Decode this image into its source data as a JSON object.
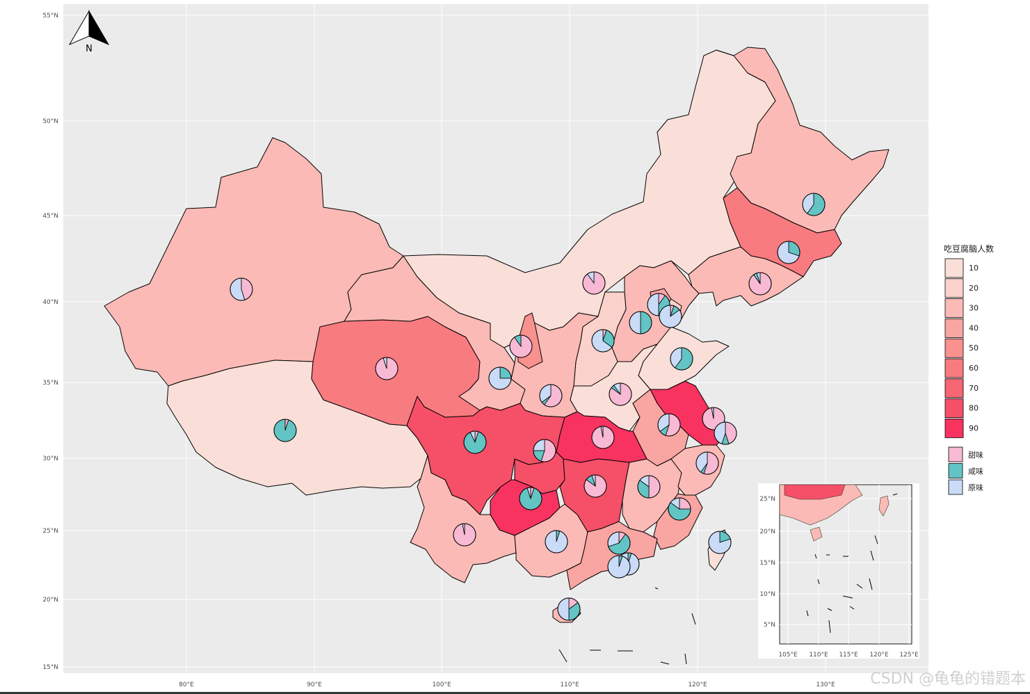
{
  "legend": {
    "title": "吃豆腐脑人数",
    "fill_levels": [
      {
        "label": "10",
        "color": "#f9dfd8"
      },
      {
        "label": "20",
        "color": "#fbd1cb"
      },
      {
        "label": "30",
        "color": "#fbbab5"
      },
      {
        "label": "40",
        "color": "#f9a5a2"
      },
      {
        "label": "50",
        "color": "#f9918f"
      },
      {
        "label": "60",
        "color": "#f87b80"
      },
      {
        "label": "70",
        "color": "#f66673"
      },
      {
        "label": "80",
        "color": "#f64f68"
      },
      {
        "label": "90",
        "color": "#f83360"
      }
    ],
    "flavors": [
      {
        "label": "甜味",
        "color": "#f7b9d3"
      },
      {
        "label": "咸味",
        "color": "#63c4c4"
      },
      {
        "label": "原味",
        "color": "#c9dbf7"
      }
    ]
  },
  "axes": {
    "y_ticks": [
      "55°N",
      "50°N",
      "45°N",
      "40°N",
      "35°N",
      "30°N",
      "25°N",
      "20°N",
      "15°N"
    ],
    "x_ticks": [
      "80°E",
      "90°E",
      "100°E",
      "110°E",
      "120°E",
      "130°E"
    ]
  },
  "inset": {
    "y_ticks": [
      "25°N",
      "20°N",
      "15°N",
      "10°N",
      "5°N"
    ],
    "x_ticks": [
      "105°E",
      "110°E",
      "115°E",
      "120°E",
      "125°E"
    ]
  },
  "north_arrow_label": "N",
  "watermark": "CSDN @龟龟的错题本",
  "colors": {
    "panel_bg": "#ebebeb",
    "grid": "#ffffff",
    "sweet": "#f7b9d3",
    "salty": "#63c4c4",
    "plain": "#c9dbf7"
  },
  "pies": [
    {
      "id": "xinjiang",
      "sweet": 0.45,
      "salty": 0.0,
      "plain": 0.55
    },
    {
      "id": "xizang",
      "sweet": 0.05,
      "salty": 0.95,
      "plain": 0.0
    },
    {
      "id": "qinghai",
      "sweet": 0.95,
      "salty": 0.0,
      "plain": 0.05
    },
    {
      "id": "sichuan",
      "sweet": 0.05,
      "salty": 0.88,
      "plain": 0.07
    },
    {
      "id": "gansu",
      "sweet": 0.0,
      "salty": 0.25,
      "plain": 0.75
    },
    {
      "id": "ningxia",
      "sweet": 0.9,
      "salty": 0.1,
      "plain": 0.0
    },
    {
      "id": "shaanxi",
      "sweet": 0.6,
      "salty": 0.05,
      "plain": 0.35
    },
    {
      "id": "neimenggu",
      "sweet": 0.9,
      "salty": 0.0,
      "plain": 0.1
    },
    {
      "id": "shanxi",
      "sweet": 0.05,
      "salty": 0.3,
      "plain": 0.65
    },
    {
      "id": "beijing",
      "sweet": 0.1,
      "salty": 0.4,
      "plain": 0.5
    },
    {
      "id": "tianjin",
      "sweet": 0.05,
      "salty": 0.1,
      "plain": 0.85
    },
    {
      "id": "hebei",
      "sweet": 0.0,
      "salty": 0.5,
      "plain": 0.5
    },
    {
      "id": "shandong",
      "sweet": 0.0,
      "salty": 0.6,
      "plain": 0.4
    },
    {
      "id": "henan",
      "sweet": 0.85,
      "salty": 0.05,
      "plain": 0.1
    },
    {
      "id": "hubei",
      "sweet": 0.97,
      "salty": 0.0,
      "plain": 0.03
    },
    {
      "id": "chongqing",
      "sweet": 0.55,
      "salty": 0.2,
      "plain": 0.25
    },
    {
      "id": "guizhou",
      "sweet": 0.05,
      "salty": 0.9,
      "plain": 0.05
    },
    {
      "id": "hunan",
      "sweet": 0.85,
      "salty": 0.1,
      "plain": 0.05
    },
    {
      "id": "jiangxi",
      "sweet": 0.5,
      "salty": 0.35,
      "plain": 0.15
    },
    {
      "id": "anhui",
      "sweet": 0.55,
      "salty": 0.1,
      "plain": 0.35
    },
    {
      "id": "jiangsu",
      "sweet": 0.97,
      "salty": 0.0,
      "plain": 0.03
    },
    {
      "id": "shanghai",
      "sweet": 0.45,
      "salty": 0.1,
      "plain": 0.45
    },
    {
      "id": "zhejiang",
      "sweet": 0.55,
      "salty": 0.05,
      "plain": 0.4
    },
    {
      "id": "fujian",
      "sweet": 0.25,
      "salty": 0.6,
      "plain": 0.15
    },
    {
      "id": "yunnan",
      "sweet": 0.97,
      "salty": 0.0,
      "plain": 0.03
    },
    {
      "id": "guangxi",
      "sweet": 0.0,
      "salty": 0.05,
      "plain": 0.95
    },
    {
      "id": "guangdong",
      "sweet": 0.1,
      "salty": 0.6,
      "plain": 0.3
    },
    {
      "id": "hongkong",
      "sweet": 0.0,
      "salty": 0.05,
      "plain": 0.95
    },
    {
      "id": "macau",
      "sweet": 0.0,
      "salty": 0.05,
      "plain": 0.95
    },
    {
      "id": "hainan",
      "sweet": 0.15,
      "salty": 0.35,
      "plain": 0.5
    },
    {
      "id": "taiwan",
      "sweet": 0.0,
      "salty": 0.2,
      "plain": 0.8
    },
    {
      "id": "liaoning",
      "sweet": 0.9,
      "salty": 0.05,
      "plain": 0.05
    },
    {
      "id": "jilin",
      "sweet": 0.0,
      "salty": 0.3,
      "plain": 0.7
    },
    {
      "id": "heilongjiang",
      "sweet": 0.0,
      "salty": 0.6,
      "plain": 0.4
    }
  ]
}
